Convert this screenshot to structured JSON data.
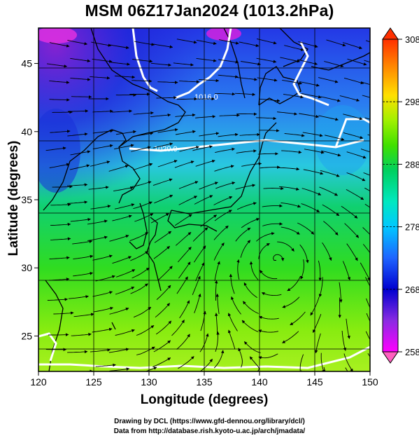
{
  "title": "MSM 06Z17Jan2024 (1013.2hPa)",
  "x_axis": {
    "label": "Longitude (degrees)",
    "ticks": [
      "120",
      "125",
      "130",
      "135",
      "140",
      "145",
      "150"
    ],
    "range": [
      120,
      150
    ]
  },
  "y_axis": {
    "label": "Latitude  (degrees)",
    "ticks": [
      "25",
      "30",
      "35",
      "40",
      "45"
    ],
    "range": [
      22.4,
      47.6
    ]
  },
  "colorbar": {
    "ticks": [
      "258",
      "268",
      "278",
      "288",
      "298",
      "308"
    ],
    "range": [
      258,
      308
    ],
    "colors": [
      "#ff00ff",
      "#8a2be2",
      "#0000d0",
      "#1e64ff",
      "#00c8ff",
      "#00e8c0",
      "#00d060",
      "#40e000",
      "#a0f000",
      "#ffe000",
      "#ff8000",
      "#ff3000"
    ]
  },
  "contours": [
    {
      "label": "1016.0",
      "color": "#ffffff"
    },
    {
      "label": "1020.0",
      "color": "#ffffff"
    }
  ],
  "colors": {
    "coast": "#000000",
    "grid": "#000000",
    "isobar": "#ffffff"
  },
  "credits": {
    "line1": "Drawing by DCL (https://www.gfd-dennou.org/library/dcl/)",
    "line2": "Data from http://database.rish.kyoto-u.ac.jp/arch/jmadata/"
  }
}
